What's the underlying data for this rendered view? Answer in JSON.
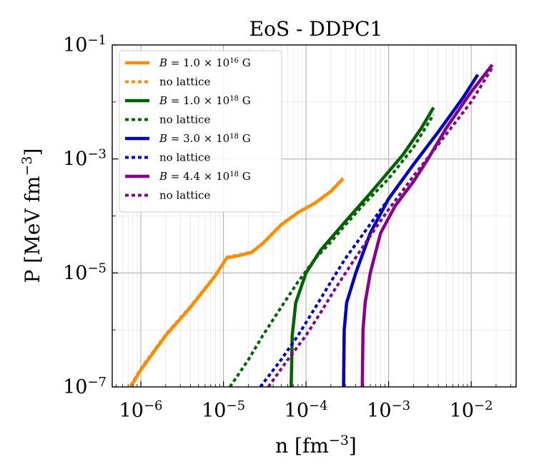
{
  "chart_data": {
    "type": "line",
    "title": "EoS - DDPC1",
    "xlabel": "n [fm^-3]",
    "ylabel": "P [MeV fm^-3]",
    "xscale": "log",
    "yscale": "log",
    "xlim": [
      4.5e-07,
      0.035
    ],
    "ylim": [
      1e-07,
      0.1
    ],
    "grid": true,
    "legend_position": "top-left",
    "x_ticks": [
      {
        "value": 1e-06,
        "base": "10",
        "exp": "−6"
      },
      {
        "value": 1e-05,
        "base": "10",
        "exp": "−5"
      },
      {
        "value": 0.0001,
        "base": "10",
        "exp": "−4"
      },
      {
        "value": 0.001,
        "base": "10",
        "exp": "−3"
      },
      {
        "value": 0.01,
        "base": "10",
        "exp": "−2"
      }
    ],
    "y_ticks": [
      {
        "value": 1e-07,
        "base": "10",
        "exp": "−7"
      },
      {
        "value": 1e-05,
        "base": "10",
        "exp": "−5"
      },
      {
        "value": 0.001,
        "base": "10",
        "exp": "−3"
      },
      {
        "value": 0.1,
        "base": "10",
        "exp": "−1"
      }
    ],
    "series": [
      {
        "name": "B = 1.0 × 10^16 G",
        "legend_text": "B = 1.0 × 10",
        "legend_exp": "16",
        "legend_unit": " G",
        "color": "#ff8c00",
        "style": "solid",
        "x": [
          7.5e-07,
          1e-06,
          2e-06,
          4e-06,
          8e-06,
          1.1e-05,
          1.5e-05,
          2.2e-05,
          3e-05,
          5e-05,
          8e-05,
          0.00013,
          0.0002,
          0.00028
        ],
        "y": [
          1e-07,
          2e-07,
          8e-07,
          2.5e-06,
          9e-06,
          1.85e-05,
          2e-05,
          2.3e-05,
          3.3e-05,
          7e-05,
          0.000115,
          0.00017,
          0.00027,
          0.00045
        ]
      },
      {
        "name": "no lattice",
        "legend_text": "no lattice",
        "color": "#ff8c00",
        "style": "dotted",
        "x": [
          7.5e-07,
          1e-06,
          2e-06,
          4e-06,
          8e-06,
          1.1e-05,
          1.5e-05,
          2.2e-05,
          3e-05,
          5e-05,
          8e-05,
          0.00013,
          0.0002,
          0.00028
        ],
        "y": [
          1.05e-07,
          2.1e-07,
          8.3e-07,
          2.6e-06,
          9.2e-06,
          1.9e-05,
          2.05e-05,
          2.35e-05,
          3.35e-05,
          7.1e-05,
          0.000117,
          0.000172,
          0.000275,
          0.00046
        ]
      },
      {
        "name": "B = 1.0 × 10^18 G",
        "legend_text": "B = 1.0 × 10",
        "legend_exp": "18",
        "legend_unit": " G",
        "color": "#006400",
        "style": "solid",
        "x": [
          6.6e-05,
          6.8e-05,
          7.5e-05,
          0.0001,
          0.00015,
          0.0003,
          0.0006,
          0.001,
          0.0015,
          0.0025,
          0.0035
        ],
        "y": [
          1e-07,
          8e-07,
          3e-06,
          1e-05,
          2.5e-05,
          8e-05,
          0.00025,
          0.0006,
          0.0012,
          0.0035,
          0.008
        ]
      },
      {
        "name": "no lattice",
        "legend_text": "no lattice",
        "color": "#006400",
        "style": "dotted",
        "x": [
          1.2e-05,
          2e-05,
          3e-05,
          5e-05,
          8e-05,
          0.00013,
          0.0002,
          0.0003,
          0.0005,
          0.001,
          0.002,
          0.0035
        ],
        "y": [
          1e-07,
          3e-07,
          8e-07,
          2.5e-06,
          7e-06,
          1.8e-05,
          3.5e-05,
          7e-05,
          0.00016,
          0.00045,
          0.0016,
          0.006
        ]
      },
      {
        "name": "B = 3.0 × 10^18 G",
        "legend_text": "B = 3.0 × 10",
        "legend_exp": "18",
        "legend_unit": " G",
        "color": "#0000cd",
        "style": "solid",
        "x": [
          0.000285,
          0.00029,
          0.00031,
          0.0004,
          0.0006,
          0.001,
          0.002,
          0.004,
          0.008,
          0.012
        ],
        "y": [
          1e-07,
          1e-06,
          3e-06,
          1e-05,
          5e-05,
          0.0002,
          0.0008,
          0.003,
          0.012,
          0.03
        ]
      },
      {
        "name": "no lattice",
        "legend_text": "no lattice",
        "color": "#0000cd",
        "style": "dotted",
        "x": [
          2.8e-05,
          5e-05,
          8e-05,
          0.00013,
          0.0002,
          0.0003,
          0.0005,
          0.001,
          0.002,
          0.004,
          0.008,
          0.012
        ],
        "y": [
          1e-07,
          3e-07,
          8e-07,
          2.5e-06,
          7e-06,
          1.8e-05,
          5e-05,
          0.0002,
          0.0008,
          0.003,
          0.012,
          0.03
        ]
      },
      {
        "name": "B = 4.4 × 10^18 G",
        "legend_text": "B = 4.4 × 10",
        "legend_exp": "18",
        "legend_unit": " G",
        "color": "#8b008b",
        "style": "solid",
        "x": [
          0.00048,
          0.00049,
          0.00052,
          0.0006,
          0.0008,
          0.0012,
          0.002,
          0.003,
          0.005,
          0.01,
          0.018
        ],
        "y": [
          1e-07,
          1e-06,
          3e-06,
          1e-05,
          5e-05,
          0.00015,
          0.0004,
          0.001,
          0.0035,
          0.015,
          0.045
        ]
      },
      {
        "name": "no lattice",
        "legend_text": "no lattice",
        "color": "#8b008b",
        "style": "dotted",
        "x": [
          3.5e-05,
          6e-05,
          0.0001,
          0.00015,
          0.00022,
          0.00035,
          0.0006,
          0.001,
          0.002,
          0.004,
          0.01,
          0.018
        ],
        "y": [
          1e-07,
          3e-07,
          8e-07,
          2e-06,
          5e-06,
          1.4e-05,
          4.5e-05,
          0.00013,
          0.0005,
          0.0018,
          0.01,
          0.04
        ]
      }
    ]
  }
}
